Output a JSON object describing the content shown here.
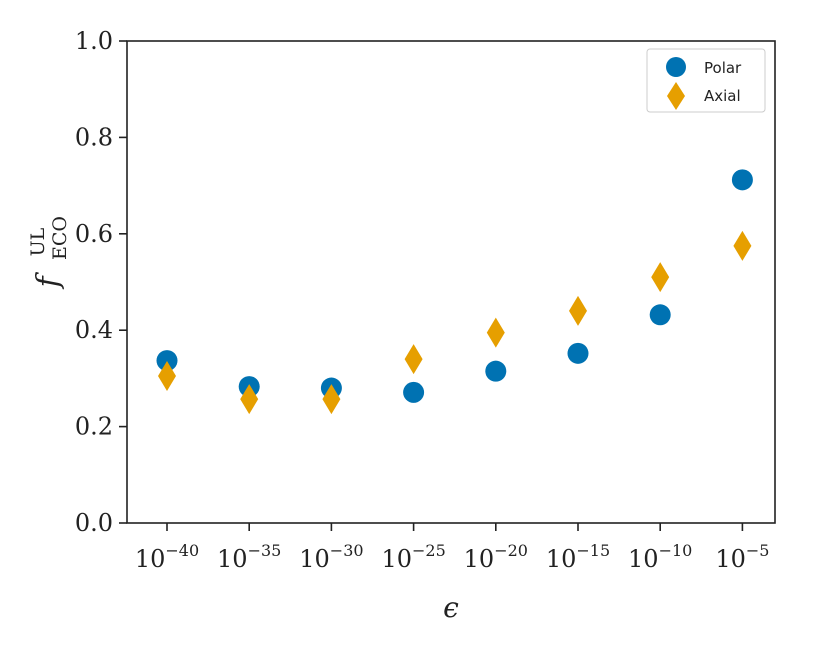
{
  "chart_data": {
    "type": "scatter",
    "title": "",
    "xlabel": "ϵ",
    "ylabel": {
      "base": "f",
      "sup": "UL",
      "sub": "ECO"
    },
    "categories": [
      {
        "base": "10",
        "exp": "−40"
      },
      {
        "base": "10",
        "exp": "−35"
      },
      {
        "base": "10",
        "exp": "−30"
      },
      {
        "base": "10",
        "exp": "−25"
      },
      {
        "base": "10",
        "exp": "−20"
      },
      {
        "base": "10",
        "exp": "−15"
      },
      {
        "base": "10",
        "exp": "−10"
      },
      {
        "base": "10",
        "exp": "−5"
      }
    ],
    "ylim": [
      0.0,
      1.0
    ],
    "yticks": [
      "0.0",
      "0.2",
      "0.4",
      "0.6",
      "0.8",
      "1.0"
    ],
    "grid": false,
    "legend": {
      "position": "top-right"
    },
    "series": [
      {
        "name": "Polar",
        "marker": "circle",
        "color": "#0072B2",
        "values": [
          0.337,
          0.283,
          0.28,
          0.271,
          0.315,
          0.352,
          0.432,
          0.712
        ]
      },
      {
        "name": "Axial",
        "marker": "diamond",
        "color": "#E69F00",
        "values": [
          0.305,
          0.257,
          0.257,
          0.34,
          0.395,
          0.44,
          0.51,
          0.575
        ]
      }
    ]
  }
}
